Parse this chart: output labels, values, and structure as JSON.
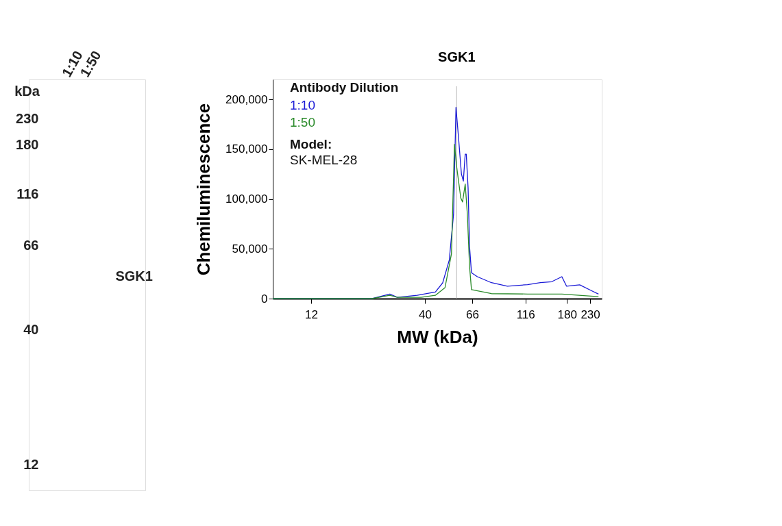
{
  "chart_data": [
    {
      "type": "other",
      "annotations": [
        "kDa",
        "230",
        "180",
        "116",
        "66",
        "40",
        "12",
        "1:10",
        "1:50",
        "SGK1"
      ]
    },
    {
      "type": "line",
      "xlabel": "MW (kDa)",
      "ylabel": "Chemiluminescence",
      "legend_title": "Antibody Dilution",
      "legend": "top left",
      "xlim": [
        8,
        260
      ],
      "xticks": [
        12,
        40,
        66,
        116,
        180,
        230
      ],
      "log": "x",
      "ylim": [
        0,
        220000
      ],
      "yticks": [
        0,
        {
          "value": 50000,
          "label": "50,000"
        },
        {
          "value": 100000,
          "label": "100,000"
        },
        {
          "value": 150000,
          "label": "150,000"
        },
        {
          "value": 200000,
          "label": "200,000"
        }
      ],
      "grid": false,
      "marker": "none",
      "line_style": "solid",
      "ref_lines": [
        {
          "axis": "x",
          "value": 56,
          "label": "SGK1",
          "color": "#bbbbbb"
        }
      ],
      "annotations": [
        "Model:",
        "SK-MEL-28"
      ],
      "series": [
        {
          "name": "1:10",
          "color": "#1a1ad6",
          "x": [
            8,
            22.9,
            27.6,
            29.9,
            36.9,
            41.2,
            44.7,
            48.3,
            51.8,
            54.2,
            55.6,
            57.0,
            58.9,
            60.1,
            61.3,
            62.0,
            63.2,
            64.2,
            65.5,
            69.7,
            80.9,
            95.8,
            118.6,
            135.9,
            153.2,
            170.5,
            179.1,
            205.9,
            233.5,
            251.2
          ],
          "values": [
            0,
            0,
            4600,
            1300,
            3300,
            5300,
            6600,
            15800,
            38800,
            85000,
            192000,
            164000,
            125000,
            118000,
            145000,
            145000,
            111000,
            52000,
            26000,
            22000,
            16000,
            12500,
            14000,
            16000,
            17000,
            22000,
            12500,
            13800,
            7900,
            4600
          ]
        },
        {
          "name": "1:50",
          "color": "#2a8a2a",
          "x": [
            8,
            22.9,
            27.6,
            29.9,
            38.4,
            44.7,
            49.5,
            53.0,
            54.7,
            56.1,
            58.5,
            59.6,
            61.3,
            62.7,
            64.2,
            65.5,
            80.9,
            118.6,
            170.5,
            251.2
          ],
          "values": [
            0,
            0,
            3300,
            1300,
            1300,
            3300,
            11000,
            45000,
            155000,
            131000,
            101000,
            97000,
            115000,
            85000,
            32000,
            9000,
            5000,
            4600,
            4600,
            2000
          ]
        }
      ]
    }
  ]
}
